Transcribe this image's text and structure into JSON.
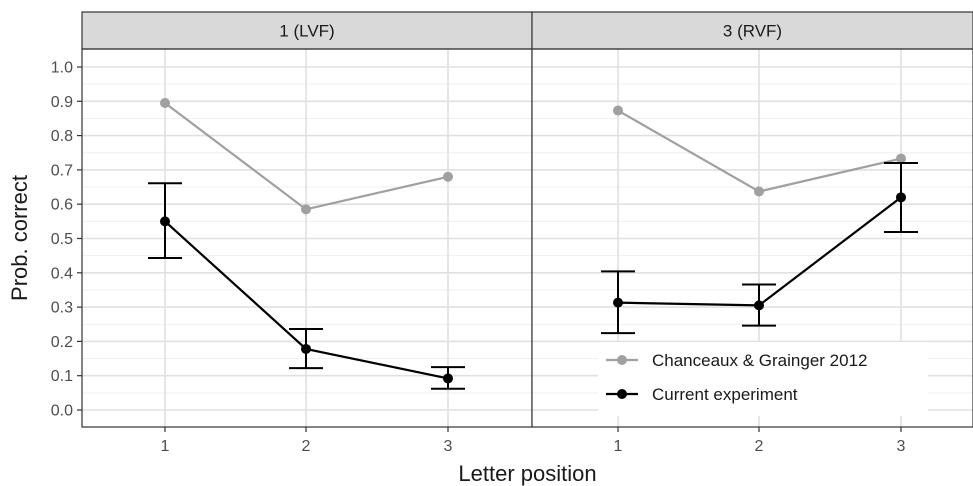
{
  "chart_data": {
    "type": "line",
    "xlabel": "Letter position",
    "ylabel": "Prob. correct",
    "ylim": [
      0.0,
      1.0
    ],
    "y_ticks": [
      "0.0",
      "0.1",
      "0.2",
      "0.3",
      "0.4",
      "0.5",
      "0.6",
      "0.7",
      "0.8",
      "0.9",
      "1.0"
    ],
    "x_ticks": [
      "1",
      "2",
      "3"
    ],
    "grid": true,
    "legend_position": "bottom-right",
    "panels": [
      {
        "strip": "1 (LVF)",
        "series": [
          {
            "name": "Chanceaux & Grainger 2012",
            "color": "#a0a0a0",
            "x": [
              1,
              2,
              3
            ],
            "y": [
              0.895,
              0.585,
              0.68
            ]
          },
          {
            "name": "Current experiment",
            "color": "#000000",
            "x": [
              1,
              2,
              3
            ],
            "y": [
              0.55,
              0.178,
              0.092
            ],
            "err_low": [
              0.443,
              0.122,
              0.062
            ],
            "err_high": [
              0.661,
              0.236,
              0.125
            ]
          }
        ]
      },
      {
        "strip": "3 (RVF)",
        "series": [
          {
            "name": "Chanceaux & Grainger 2012",
            "color": "#a0a0a0",
            "x": [
              1,
              2,
              3
            ],
            "y": [
              0.873,
              0.637,
              0.733
            ]
          },
          {
            "name": "Current experiment",
            "color": "#000000",
            "x": [
              1,
              2,
              3
            ],
            "y": [
              0.313,
              0.305,
              0.62
            ],
            "err_low": [
              0.224,
              0.246,
              0.519
            ],
            "err_high": [
              0.404,
              0.366,
              0.72
            ]
          }
        ]
      }
    ],
    "legend": [
      {
        "label": "Chanceaux & Grainger 2012",
        "color": "#a0a0a0"
      },
      {
        "label": "Current experiment",
        "color": "#000000"
      }
    ]
  }
}
